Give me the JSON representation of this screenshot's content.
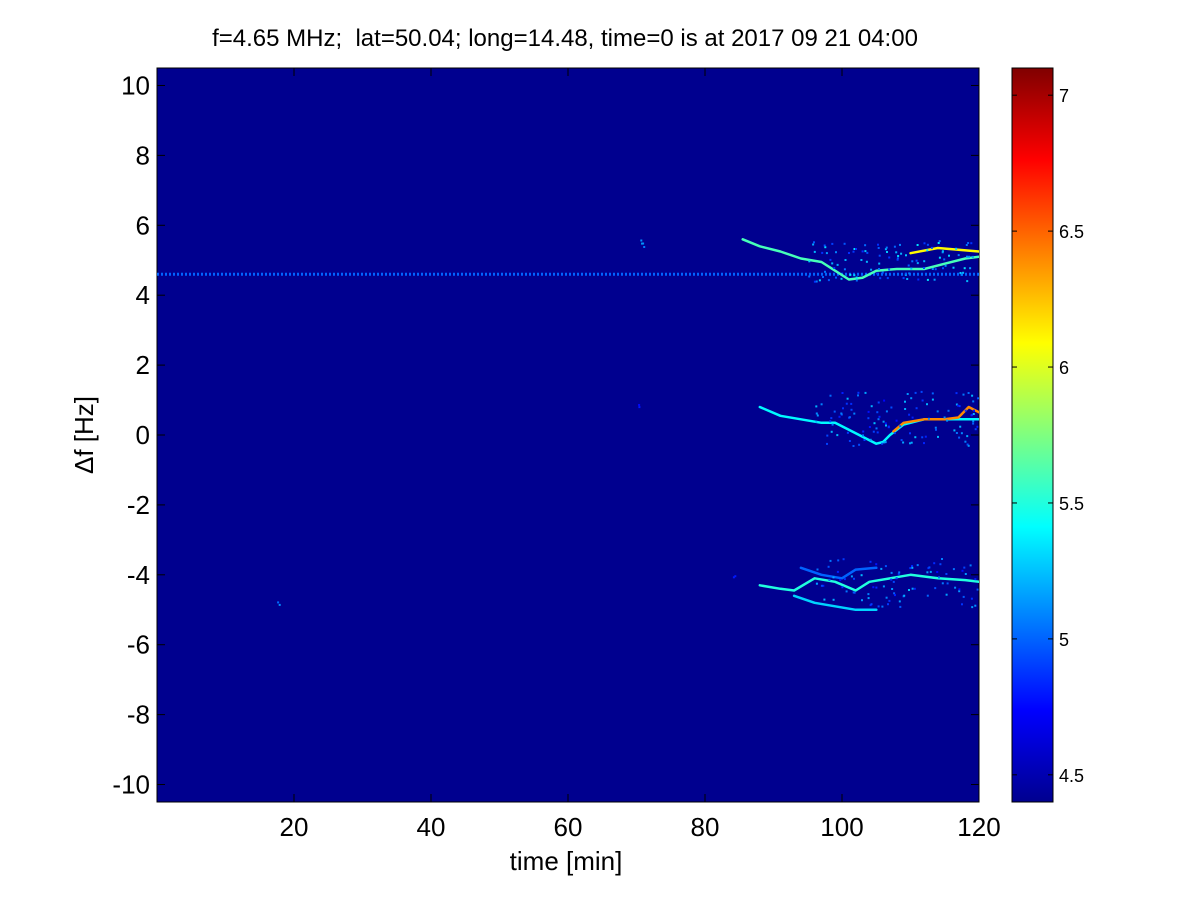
{
  "chart_data": {
    "type": "heatmap",
    "title": "f=4.65 MHz;  lat=50.04; long=14.48, time=0 is at 2017 09 21 04:00",
    "xlabel": "time [min]",
    "ylabel": "Δf [Hz]",
    "xlim": [
      0,
      120
    ],
    "ylim": [
      -10.5,
      10.5
    ],
    "x_ticks": [
      20,
      40,
      60,
      80,
      100,
      120
    ],
    "y_ticks": [
      -10,
      -8,
      -6,
      -4,
      -2,
      0,
      2,
      4,
      6,
      8,
      10
    ],
    "grid": false,
    "colormap": "jet",
    "background_value": 4.4,
    "colorbar": {
      "clim": [
        4.4,
        7.1
      ],
      "ticks": [
        4.5,
        5,
        5.5,
        6,
        6.5,
        7
      ],
      "tick_labels": [
        "4.5",
        "5",
        "5.5",
        "6",
        "6.5",
        "7"
      ]
    },
    "traces": [
      {
        "name": "",
        "kind": "dashed",
        "level": 5.0,
        "points": [
          [
            0,
            4.6
          ],
          [
            120,
            4.6
          ]
        ]
      },
      {
        "name": "",
        "kind": "line",
        "level": 5.6,
        "points": [
          [
            85.5,
            5.6
          ],
          [
            88,
            5.4
          ],
          [
            91,
            5.25
          ],
          [
            94,
            5.05
          ],
          [
            97,
            4.95
          ],
          [
            99,
            4.7
          ],
          [
            101,
            4.45
          ],
          [
            103,
            4.5
          ],
          [
            105,
            4.7
          ],
          [
            108,
            4.75
          ],
          [
            112,
            4.75
          ],
          [
            115,
            4.9
          ],
          [
            118,
            5.05
          ],
          [
            120,
            5.1
          ]
        ]
      },
      {
        "name": "",
        "kind": "line",
        "level": 6.1,
        "points": [
          [
            110,
            5.2
          ],
          [
            114,
            5.35
          ],
          [
            117,
            5.3
          ],
          [
            120,
            5.25
          ]
        ]
      },
      {
        "name": "",
        "kind": "line",
        "level": 5.4,
        "points": [
          [
            88,
            0.8
          ],
          [
            91,
            0.55
          ],
          [
            94,
            0.45
          ],
          [
            97,
            0.35
          ],
          [
            99,
            0.35
          ],
          [
            102,
            0.05
          ],
          [
            105,
            -0.25
          ],
          [
            106,
            -0.2
          ],
          [
            107,
            0.0
          ],
          [
            109,
            0.3
          ],
          [
            112,
            0.45
          ],
          [
            116,
            0.45
          ],
          [
            120,
            0.45
          ]
        ]
      },
      {
        "name": "",
        "kind": "line",
        "level": 6.4,
        "points": [
          [
            107.5,
            0.1
          ],
          [
            109,
            0.35
          ],
          [
            112,
            0.45
          ],
          [
            115,
            0.45
          ],
          [
            117,
            0.5
          ],
          [
            118.5,
            0.8
          ],
          [
            120,
            0.65
          ]
        ]
      },
      {
        "name": "",
        "kind": "line",
        "level": 5.5,
        "points": [
          [
            88,
            -4.3
          ],
          [
            91,
            -4.4
          ],
          [
            93,
            -4.45
          ],
          [
            96,
            -4.1
          ],
          [
            99,
            -4.2
          ],
          [
            102,
            -4.45
          ],
          [
            104,
            -4.2
          ],
          [
            107,
            -4.1
          ],
          [
            110,
            -4.0
          ],
          [
            114,
            -4.1
          ],
          [
            118,
            -4.15
          ],
          [
            120,
            -4.2
          ]
        ]
      },
      {
        "name": "",
        "kind": "line",
        "level": 5.3,
        "points": [
          [
            93,
            -4.6
          ],
          [
            96,
            -4.8
          ],
          [
            99,
            -4.9
          ],
          [
            102,
            -5.0
          ],
          [
            105,
            -5.0
          ]
        ]
      },
      {
        "name": "",
        "kind": "line",
        "level": 5.0,
        "points": [
          [
            94,
            -3.8
          ],
          [
            97,
            -4.0
          ],
          [
            100,
            -4.1
          ],
          [
            102,
            -3.85
          ],
          [
            105,
            -3.8
          ]
        ]
      }
    ],
    "speckles": [
      {
        "level": 5.1,
        "x_range": [
          95,
          120
        ],
        "y_range": [
          4.4,
          5.6
        ],
        "count": 110
      },
      {
        "level": 5.0,
        "x_range": [
          96,
          120
        ],
        "y_range": [
          -0.3,
          1.3
        ],
        "count": 120
      },
      {
        "level": 5.0,
        "x_range": [
          96,
          120
        ],
        "y_range": [
          -4.9,
          -3.5
        ],
        "count": 90
      },
      {
        "level": 5.2,
        "x_range": [
          70.5,
          71.5
        ],
        "y_range": [
          5.4,
          5.6
        ],
        "count": 4
      },
      {
        "level": 4.9,
        "x_range": [
          69.5,
          70.5
        ],
        "y_range": [
          0.8,
          0.9
        ],
        "count": 2
      },
      {
        "level": 4.9,
        "x_range": [
          17.5,
          18.2
        ],
        "y_range": [
          -4.85,
          -4.75
        ],
        "count": 2
      },
      {
        "level": 4.9,
        "x_range": [
          84,
          84.6
        ],
        "y_range": [
          -4.05,
          -3.95
        ],
        "count": 2
      }
    ]
  }
}
